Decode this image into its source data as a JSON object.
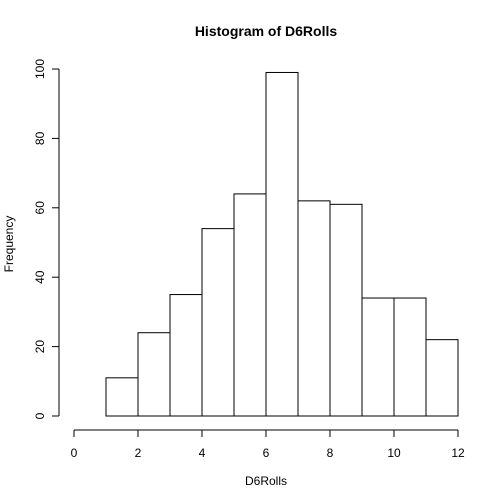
{
  "chart_data": {
    "type": "bar",
    "title": "Histogram of D6Rolls",
    "xlabel": "D6Rolls",
    "ylabel": "Frequency",
    "xlim": [
      0,
      12
    ],
    "ylim": [
      0,
      100
    ],
    "x_ticks": [
      0,
      2,
      4,
      6,
      8,
      10,
      12
    ],
    "y_ticks": [
      0,
      20,
      40,
      60,
      80,
      100
    ],
    "bins": [
      {
        "start": 0,
        "end": 1,
        "count": 0
      },
      {
        "start": 1,
        "end": 2,
        "count": 11
      },
      {
        "start": 2,
        "end": 3,
        "count": 24
      },
      {
        "start": 3,
        "end": 4,
        "count": 35
      },
      {
        "start": 4,
        "end": 5,
        "count": 54
      },
      {
        "start": 5,
        "end": 6,
        "count": 64
      },
      {
        "start": 6,
        "end": 7,
        "count": 99
      },
      {
        "start": 7,
        "end": 8,
        "count": 62
      },
      {
        "start": 8,
        "end": 9,
        "count": 61
      },
      {
        "start": 9,
        "end": 10,
        "count": 34
      },
      {
        "start": 10,
        "end": 11,
        "count": 34
      },
      {
        "start": 11,
        "end": 12,
        "count": 22
      }
    ],
    "grid": false,
    "legend": "none"
  }
}
